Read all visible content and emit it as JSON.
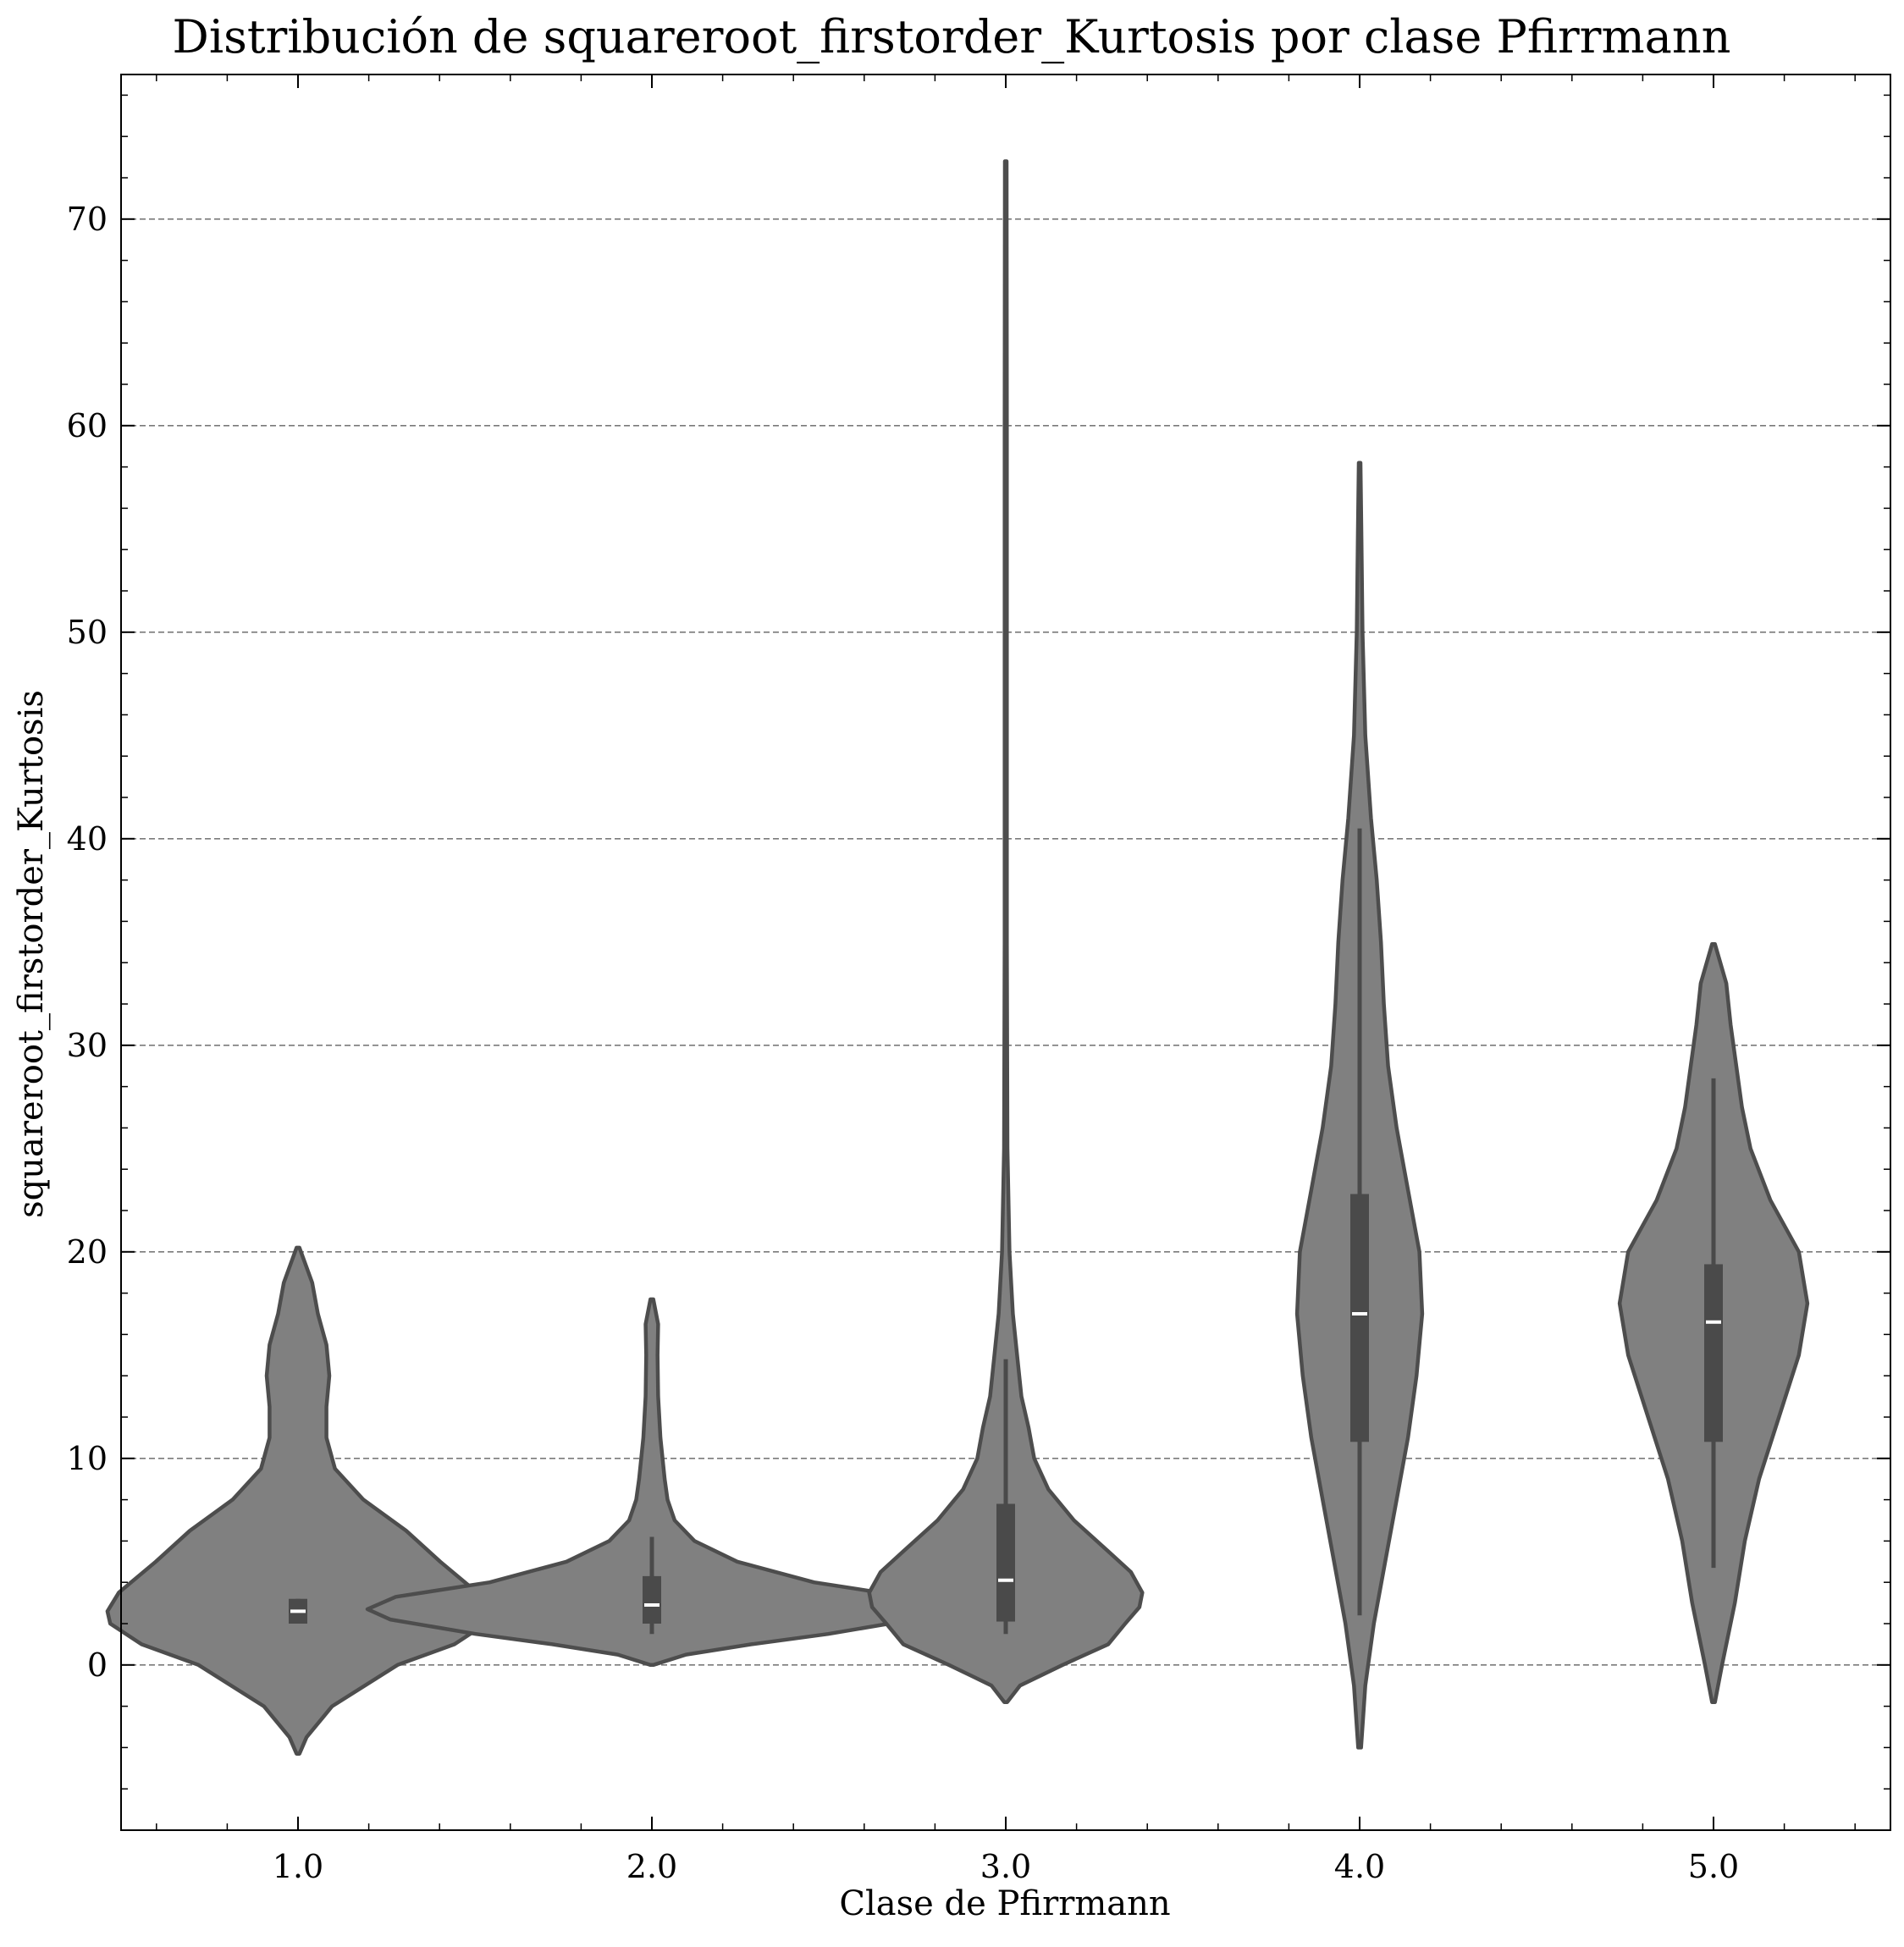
{
  "chart_data": {
    "type": "violin",
    "title": "Distribución de squareroot_firstorder_Kurtosis por clase Pfirrmann",
    "xlabel": "Clase de Pfirrmann",
    "ylabel": "squareroot_firstorder_Kurtosis",
    "categories": [
      "1.0",
      "2.0",
      "3.0",
      "4.0",
      "5.0"
    ],
    "ylim": [
      -8,
      77
    ],
    "yticks": [
      0,
      10,
      20,
      30,
      40,
      50,
      60,
      70
    ],
    "ytick_labels": [
      "0",
      "10",
      "20",
      "30",
      "40",
      "50",
      "60",
      "70"
    ],
    "grid": "horizontal dashed",
    "violin_color": "#808080",
    "edge_color": "#4d4d4d",
    "median_color": "#ffffff",
    "series": [
      {
        "category": "1.0",
        "box": {
          "q1": 2.0,
          "median": 2.6,
          "q3": 3.2,
          "whisker_low": 2.0,
          "whisker_high": 3.2
        },
        "density": [
          [
            -4.3,
            0.005
          ],
          [
            -3.5,
            0.03
          ],
          [
            -2,
            0.12
          ],
          [
            0,
            0.35
          ],
          [
            1,
            0.55
          ],
          [
            2,
            0.66
          ],
          [
            2.6,
            0.67
          ],
          [
            3.5,
            0.63
          ],
          [
            5,
            0.5
          ],
          [
            6.5,
            0.38
          ],
          [
            8,
            0.23
          ],
          [
            9.5,
            0.13
          ],
          [
            11,
            0.1
          ],
          [
            12.5,
            0.1
          ],
          [
            14,
            0.11
          ],
          [
            15.5,
            0.1
          ],
          [
            17,
            0.07
          ],
          [
            18.5,
            0.05
          ],
          [
            20.2,
            0.005
          ]
        ]
      },
      {
        "category": "2.0",
        "box": {
          "q1": 2.0,
          "median": 2.9,
          "q3": 4.3,
          "whisker_low": 1.5,
          "whisker_high": 6.2
        },
        "density": [
          [
            0,
            0.005
          ],
          [
            0.5,
            0.12
          ],
          [
            1,
            0.35
          ],
          [
            1.5,
            0.62
          ],
          [
            2.2,
            0.92
          ],
          [
            2.7,
            1.0
          ],
          [
            3.3,
            0.9
          ],
          [
            4,
            0.57
          ],
          [
            5,
            0.3
          ],
          [
            6,
            0.15
          ],
          [
            7,
            0.08
          ],
          [
            8,
            0.055
          ],
          [
            9,
            0.045
          ],
          [
            11,
            0.03
          ],
          [
            13,
            0.022
          ],
          [
            15,
            0.02
          ],
          [
            16.5,
            0.022
          ],
          [
            17.7,
            0.005
          ]
        ]
      },
      {
        "category": "3.0",
        "box": {
          "q1": 2.1,
          "median": 4.1,
          "q3": 7.8,
          "whisker_low": 1.5,
          "whisker_high": 14.8
        },
        "density": [
          [
            -1.8,
            0.005
          ],
          [
            -1,
            0.05
          ],
          [
            0,
            0.2
          ],
          [
            1,
            0.36
          ],
          [
            2,
            0.42
          ],
          [
            2.8,
            0.47
          ],
          [
            3.5,
            0.48
          ],
          [
            4.5,
            0.44
          ],
          [
            5.5,
            0.36
          ],
          [
            7,
            0.24
          ],
          [
            8.5,
            0.15
          ],
          [
            10,
            0.1
          ],
          [
            11.5,
            0.08
          ],
          [
            13,
            0.055
          ],
          [
            15,
            0.04
          ],
          [
            17,
            0.025
          ],
          [
            20,
            0.013
          ],
          [
            25,
            0.006
          ],
          [
            35,
            0.004
          ],
          [
            50,
            0.004
          ],
          [
            60,
            0.004
          ],
          [
            72.8,
            0.003
          ]
        ]
      },
      {
        "category": "4.0",
        "box": {
          "q1": 10.8,
          "median": 17.0,
          "q3": 22.8,
          "whisker_low": 2.4,
          "whisker_high": 40.5
        },
        "density": [
          [
            -4,
            0.005
          ],
          [
            -1,
            0.02
          ],
          [
            2,
            0.05
          ],
          [
            5,
            0.09
          ],
          [
            8,
            0.13
          ],
          [
            11,
            0.17
          ],
          [
            14,
            0.2
          ],
          [
            17,
            0.22
          ],
          [
            20,
            0.21
          ],
          [
            23,
            0.17
          ],
          [
            26,
            0.13
          ],
          [
            29,
            0.1
          ],
          [
            32,
            0.085
          ],
          [
            35,
            0.075
          ],
          [
            38,
            0.06
          ],
          [
            41,
            0.04
          ],
          [
            45,
            0.02
          ],
          [
            50,
            0.01
          ],
          [
            55,
            0.006
          ],
          [
            58.2,
            0.003
          ]
        ]
      },
      {
        "category": "5.0",
        "box": {
          "q1": 10.8,
          "median": 16.6,
          "q3": 19.4,
          "whisker_low": 4.7,
          "whisker_high": 28.4
        },
        "density": [
          [
            -1.8,
            0.005
          ],
          [
            0,
            0.03
          ],
          [
            3,
            0.075
          ],
          [
            6,
            0.11
          ],
          [
            9,
            0.16
          ],
          [
            12,
            0.23
          ],
          [
            15,
            0.3
          ],
          [
            17.5,
            0.33
          ],
          [
            20,
            0.3
          ],
          [
            22.5,
            0.2
          ],
          [
            25,
            0.13
          ],
          [
            27,
            0.1
          ],
          [
            29,
            0.08
          ],
          [
            31,
            0.06
          ],
          [
            33,
            0.045
          ],
          [
            34.9,
            0.005
          ]
        ]
      }
    ]
  }
}
